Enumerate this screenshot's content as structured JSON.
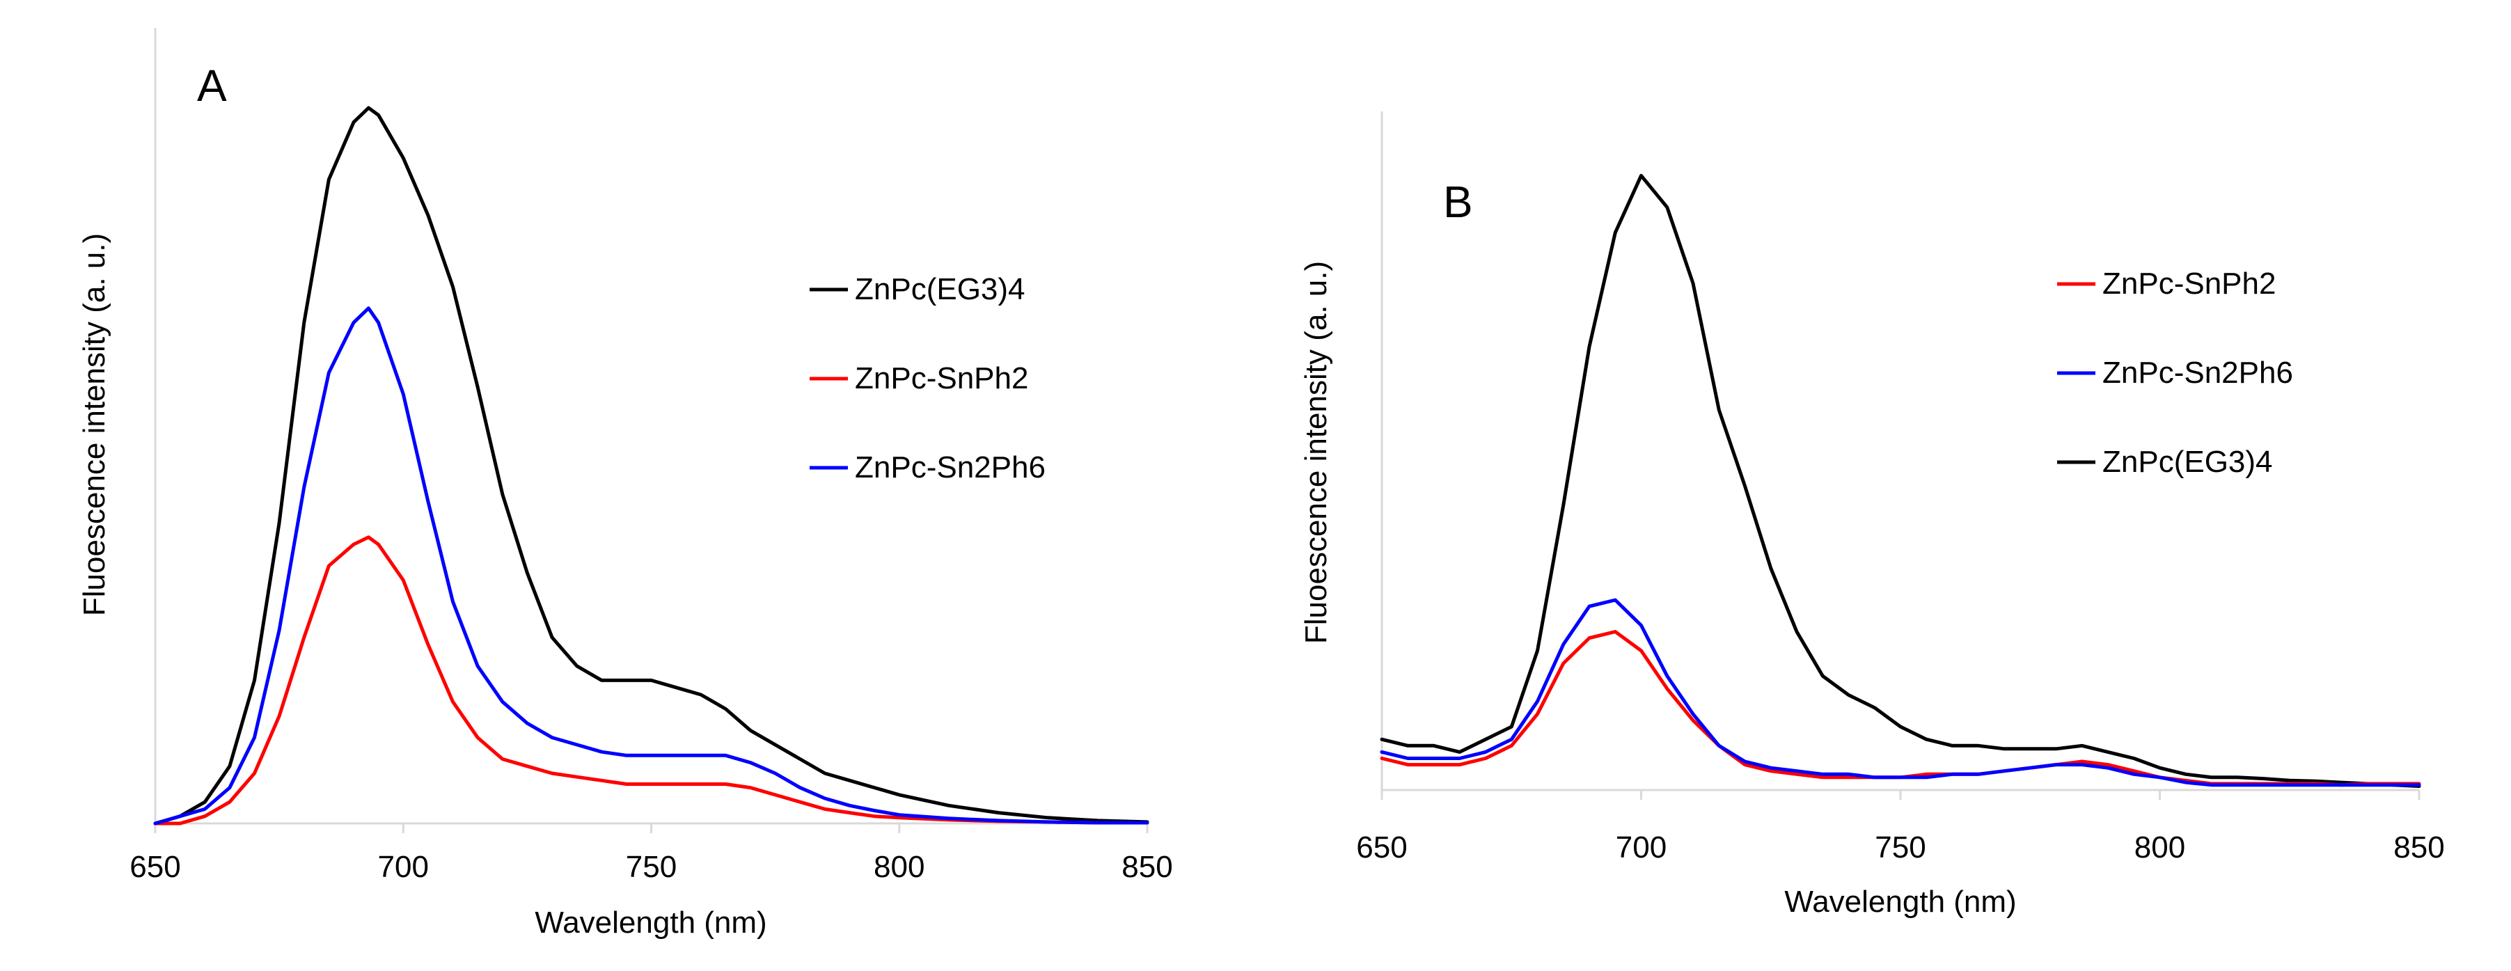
{
  "chart_data": [
    {
      "type": "line",
      "panel_label": "A",
      "xlabel": "Wavelength (nm)",
      "ylabel": "Fluoescence intensity (a. u.)",
      "xlim": [
        650,
        850
      ],
      "ylim": [
        0,
        1
      ],
      "x_ticks": [
        "650",
        "700",
        "750",
        "800",
        "850"
      ],
      "y_ticks": [],
      "legend_position": "right",
      "legend_order": [
        0,
        1,
        2
      ],
      "series": [
        {
          "name": "ZnPc(EG3)4",
          "color": "#000000",
          "x": [
            650,
            655,
            660,
            665,
            670,
            675,
            680,
            685,
            690,
            693,
            695,
            700,
            705,
            710,
            715,
            720,
            725,
            730,
            735,
            740,
            745,
            750,
            755,
            760,
            765,
            770,
            775,
            780,
            785,
            790,
            795,
            800,
            810,
            820,
            830,
            840,
            850
          ],
          "y": [
            0.0,
            0.01,
            0.03,
            0.08,
            0.2,
            0.42,
            0.7,
            0.9,
            0.98,
            1.0,
            0.99,
            0.93,
            0.85,
            0.75,
            0.61,
            0.46,
            0.35,
            0.26,
            0.22,
            0.2,
            0.2,
            0.2,
            0.19,
            0.18,
            0.16,
            0.13,
            0.11,
            0.09,
            0.07,
            0.06,
            0.05,
            0.04,
            0.025,
            0.015,
            0.008,
            0.004,
            0.002
          ]
        },
        {
          "name": "ZnPc-SnPh2",
          "color": "#ff0000",
          "x": [
            650,
            655,
            660,
            665,
            670,
            675,
            680,
            685,
            690,
            693,
            695,
            700,
            705,
            710,
            715,
            720,
            725,
            730,
            735,
            740,
            745,
            750,
            755,
            760,
            765,
            770,
            775,
            780,
            785,
            790,
            795,
            800,
            810,
            820,
            830,
            840,
            850
          ],
          "y": [
            0.0,
            0.0,
            0.01,
            0.03,
            0.07,
            0.15,
            0.26,
            0.36,
            0.39,
            0.4,
            0.39,
            0.34,
            0.25,
            0.17,
            0.12,
            0.09,
            0.08,
            0.07,
            0.065,
            0.06,
            0.055,
            0.055,
            0.055,
            0.055,
            0.055,
            0.05,
            0.04,
            0.03,
            0.02,
            0.015,
            0.01,
            0.008,
            0.005,
            0.003,
            0.002,
            0.001,
            0.001
          ]
        },
        {
          "name": "ZnPc-Sn2Ph6",
          "color": "#0000ff",
          "x": [
            650,
            655,
            660,
            665,
            670,
            675,
            680,
            685,
            690,
            693,
            695,
            700,
            705,
            710,
            715,
            720,
            725,
            730,
            735,
            740,
            745,
            750,
            755,
            760,
            765,
            770,
            775,
            780,
            785,
            790,
            795,
            800,
            810,
            820,
            830,
            840,
            850
          ],
          "y": [
            0.0,
            0.01,
            0.02,
            0.05,
            0.12,
            0.27,
            0.47,
            0.63,
            0.7,
            0.72,
            0.7,
            0.6,
            0.45,
            0.31,
            0.22,
            0.17,
            0.14,
            0.12,
            0.11,
            0.1,
            0.095,
            0.095,
            0.095,
            0.095,
            0.095,
            0.085,
            0.07,
            0.05,
            0.035,
            0.025,
            0.018,
            0.012,
            0.007,
            0.004,
            0.002,
            0.001,
            0.001
          ]
        }
      ]
    },
    {
      "type": "line",
      "panel_label": "B",
      "xlabel": "Wavelength (nm)",
      "ylabel": "Fluoescence intensity (a. u.)",
      "xlim": [
        650,
        850
      ],
      "ylim": [
        0,
        1
      ],
      "x_ticks": [
        "650",
        "700",
        "750",
        "800",
        "850"
      ],
      "y_ticks": [],
      "legend_position": "right",
      "legend_order": [
        1,
        2,
        0
      ],
      "series": [
        {
          "name": "ZnPc(EG3)4",
          "color": "#000000",
          "x": [
            650,
            655,
            660,
            665,
            670,
            675,
            680,
            685,
            690,
            695,
            700,
            705,
            710,
            715,
            720,
            725,
            730,
            735,
            740,
            745,
            750,
            755,
            760,
            765,
            770,
            775,
            780,
            785,
            790,
            795,
            800,
            805,
            810,
            815,
            820,
            825,
            830,
            835,
            840,
            845,
            850
          ],
          "y": [
            0.08,
            0.07,
            0.07,
            0.06,
            0.08,
            0.1,
            0.22,
            0.45,
            0.7,
            0.88,
            0.97,
            0.92,
            0.8,
            0.6,
            0.48,
            0.35,
            0.25,
            0.18,
            0.15,
            0.13,
            0.1,
            0.08,
            0.07,
            0.07,
            0.065,
            0.065,
            0.065,
            0.07,
            0.06,
            0.05,
            0.035,
            0.025,
            0.02,
            0.02,
            0.018,
            0.015,
            0.014,
            0.012,
            0.01,
            0.008,
            0.006
          ]
        },
        {
          "name": "ZnPc-SnPh2",
          "color": "#ff0000",
          "x": [
            650,
            655,
            660,
            665,
            670,
            675,
            680,
            685,
            690,
            695,
            700,
            705,
            710,
            715,
            720,
            725,
            730,
            735,
            740,
            745,
            750,
            755,
            760,
            765,
            770,
            775,
            780,
            785,
            790,
            795,
            800,
            805,
            810,
            815,
            820,
            825,
            830,
            835,
            840,
            845,
            850
          ],
          "y": [
            0.05,
            0.04,
            0.04,
            0.04,
            0.05,
            0.07,
            0.12,
            0.2,
            0.24,
            0.25,
            0.22,
            0.16,
            0.11,
            0.07,
            0.04,
            0.03,
            0.025,
            0.02,
            0.02,
            0.02,
            0.02,
            0.025,
            0.025,
            0.025,
            0.03,
            0.035,
            0.04,
            0.045,
            0.04,
            0.03,
            0.02,
            0.015,
            0.01,
            0.01,
            0.01,
            0.01,
            0.01,
            0.008,
            0.01,
            0.01,
            0.01
          ]
        },
        {
          "name": "ZnPc-Sn2Ph6",
          "color": "#0000ff",
          "x": [
            650,
            655,
            660,
            665,
            670,
            675,
            680,
            685,
            690,
            695,
            700,
            705,
            710,
            715,
            720,
            725,
            730,
            735,
            740,
            745,
            750,
            755,
            760,
            765,
            770,
            775,
            780,
            785,
            790,
            795,
            800,
            805,
            810,
            815,
            820,
            825,
            830,
            835,
            840,
            845,
            850
          ],
          "y": [
            0.06,
            0.05,
            0.05,
            0.05,
            0.06,
            0.08,
            0.14,
            0.23,
            0.29,
            0.3,
            0.26,
            0.18,
            0.12,
            0.07,
            0.045,
            0.035,
            0.03,
            0.025,
            0.025,
            0.02,
            0.02,
            0.02,
            0.025,
            0.025,
            0.03,
            0.035,
            0.04,
            0.04,
            0.035,
            0.025,
            0.02,
            0.012,
            0.008,
            0.008,
            0.008,
            0.008,
            0.008,
            0.008,
            0.008,
            0.008,
            0.008
          ]
        }
      ]
    }
  ]
}
